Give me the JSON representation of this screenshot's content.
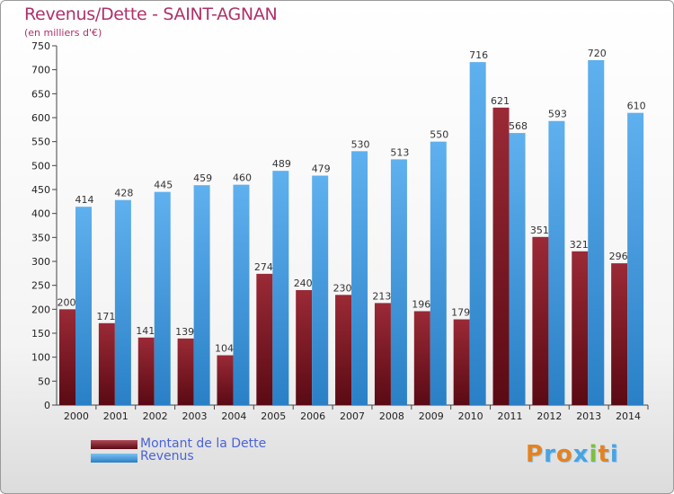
{
  "title": "Revenus/Dette - SAINT-AGNAN",
  "subtitle": "(en milliers d'€)",
  "logo_text": "Proxiti",
  "colors": {
    "title": "#b0306a",
    "dette": "#7b1420",
    "revenus": "#3f9be0",
    "legend_text": "#4a63d8"
  },
  "chart_data": {
    "type": "bar",
    "title": "Revenus/Dette - SAINT-AGNAN",
    "subtitle": "(en milliers d'€)",
    "categories": [
      "2000",
      "2001",
      "2002",
      "2003",
      "2004",
      "2005",
      "2006",
      "2007",
      "2008",
      "2009",
      "2010",
      "2011",
      "2012",
      "2013",
      "2014"
    ],
    "series": [
      {
        "name": "Montant de la Dette",
        "values": [
          200,
          171,
          141,
          139,
          104,
          274,
          240,
          230,
          213,
          196,
          179,
          621,
          351,
          321,
          296
        ]
      },
      {
        "name": "Revenus",
        "values": [
          414,
          428,
          445,
          459,
          460,
          489,
          479,
          530,
          513,
          550,
          716,
          568,
          593,
          720,
          610
        ]
      }
    ],
    "ylim": [
      0,
      750
    ],
    "yticks": [
      0,
      50,
      100,
      150,
      200,
      250,
      300,
      350,
      400,
      450,
      500,
      550,
      600,
      650,
      700,
      750
    ],
    "grid": false,
    "legend": "bottom-left"
  }
}
